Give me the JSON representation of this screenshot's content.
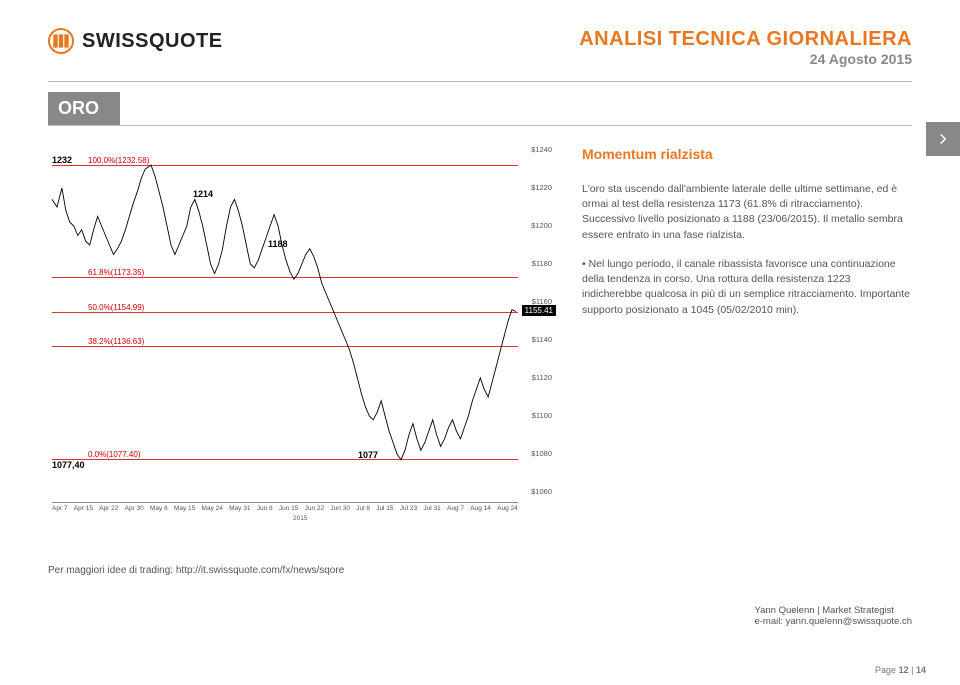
{
  "header": {
    "logo_text": "SWISSQUOTE",
    "title": "ANALISI TECNICA GIORNALIERA",
    "subtitle": "24 Agosto 2015"
  },
  "section": "ORO",
  "text": {
    "momentum": "Momentum rialzista",
    "p1": "L'oro sta uscendo dall'ambiente laterale delle ultime settimane, ed è ormai al test della resistenza 1173 (61.8% di ritracciamento). Successivo livello posizionato a 1188 (23/06/2015). Il metallo sembra essere entrato in una fase rialzista.",
    "p2": "• Nel lungo periodo, il canale ribassista favorisce una continuazione della tendenza in corso. Una rottura della resistenza 1223 indicherebbe qualcosa in più di un semplice ritracciamento. Importante supporto posizionato a 1045 (05/02/2010 min)."
  },
  "chart": {
    "background": "#ffffff",
    "grid_color": "#e5e5e5",
    "line_color": "#000000",
    "red_line_color": "#cc2222",
    "y_min": 1060,
    "y_max": 1240,
    "y_ticks": [
      1060,
      1080,
      1100,
      1120,
      1140,
      1160,
      1180,
      1200,
      1220,
      1240
    ],
    "close_price": 1155.41,
    "annotations": [
      {
        "label": "1232",
        "fib": "100.0%(1232.58)",
        "y": 1232,
        "bold": true
      },
      {
        "label": "1214",
        "fib": "",
        "y": 1214,
        "bold": true
      },
      {
        "label": "1188",
        "fib": "",
        "y": 1188,
        "bold": true
      },
      {
        "label": "",
        "fib": "61.8%(1173.35)",
        "y": 1173,
        "bold": false
      },
      {
        "label": "",
        "fib": "50.0%(1154.99)",
        "y": 1155,
        "bold": false
      },
      {
        "label": "",
        "fib": "38.2%(1136.63)",
        "y": 1137,
        "bold": false
      },
      {
        "label": "1077,40",
        "fib": "0.0%(1077.40)",
        "y": 1077.4,
        "bold": true
      },
      {
        "label": "1077",
        "fib": "",
        "y": 1077,
        "bold": true
      }
    ],
    "x_labels": [
      "Apr 7",
      "Apr 15",
      "Apr 22",
      "Apr 30",
      "May 8",
      "May 15",
      "May 24",
      "May 31",
      "Jun 8",
      "Jun 15",
      "Jun 22",
      "Jun 30",
      "Jul 8",
      "Jul 15",
      "Jul 23",
      "Jul 31",
      "Aug 7",
      "Aug 14",
      "Aug 24"
    ],
    "x_year": "2015",
    "price_path_x": [
      0,
      5,
      10,
      14,
      18,
      22,
      26,
      30,
      34,
      38,
      42,
      46,
      50,
      54,
      58,
      62,
      66,
      70,
      74,
      78,
      82,
      86,
      90,
      94,
      100,
      104,
      108,
      112,
      116,
      120,
      124,
      128,
      132,
      136,
      140,
      144,
      148,
      152,
      156,
      160,
      164,
      168,
      172,
      176,
      180,
      184,
      188,
      192,
      196,
      200,
      204,
      208,
      212,
      216,
      220,
      224,
      228,
      232,
      236,
      240,
      244,
      248,
      252,
      256,
      260,
      264,
      268,
      272,
      276,
      280,
      284,
      288,
      292,
      296,
      300,
      304,
      308,
      312,
      316,
      320,
      324,
      328,
      332,
      336,
      340,
      344,
      348,
      352,
      356,
      360,
      364,
      368,
      372,
      376,
      380,
      384,
      388,
      392,
      396,
      400,
      404,
      408,
      412,
      416,
      420,
      424,
      428,
      432,
      436,
      440,
      444,
      448,
      452,
      456,
      460,
      464,
      468
    ],
    "price_path_y": [
      1214,
      1210,
      1220,
      1208,
      1202,
      1200,
      1195,
      1198,
      1192,
      1190,
      1198,
      1205,
      1200,
      1195,
      1190,
      1185,
      1188,
      1192,
      1198,
      1205,
      1212,
      1218,
      1225,
      1230,
      1232,
      1226,
      1218,
      1210,
      1200,
      1190,
      1185,
      1190,
      1195,
      1200,
      1210,
      1214,
      1208,
      1200,
      1190,
      1180,
      1175,
      1180,
      1188,
      1200,
      1210,
      1214,
      1208,
      1200,
      1190,
      1180,
      1178,
      1182,
      1188,
      1194,
      1200,
      1206,
      1200,
      1190,
      1182,
      1176,
      1172,
      1175,
      1180,
      1185,
      1188,
      1184,
      1178,
      1170,
      1165,
      1160,
      1155,
      1150,
      1145,
      1140,
      1135,
      1128,
      1120,
      1112,
      1105,
      1100,
      1098,
      1102,
      1108,
      1100,
      1092,
      1086,
      1080,
      1077,
      1082,
      1090,
      1096,
      1088,
      1082,
      1086,
      1092,
      1098,
      1090,
      1084,
      1088,
      1094,
      1098,
      1092,
      1088,
      1094,
      1100,
      1108,
      1114,
      1120,
      1114,
      1110,
      1118,
      1126,
      1134,
      1142,
      1150,
      1156,
      1155
    ]
  },
  "footer": {
    "link_text": "Per maggiori idee di trading: http://it.swissquote.com/fx/news/sqore",
    "author_line1": "Yann Quelenn | Market Strategist",
    "author_line2": "e-mail: yann.quelenn@swissquote.ch",
    "page_label": "Page",
    "page_cur": "12",
    "page_sep": "|",
    "page_total": "14"
  }
}
